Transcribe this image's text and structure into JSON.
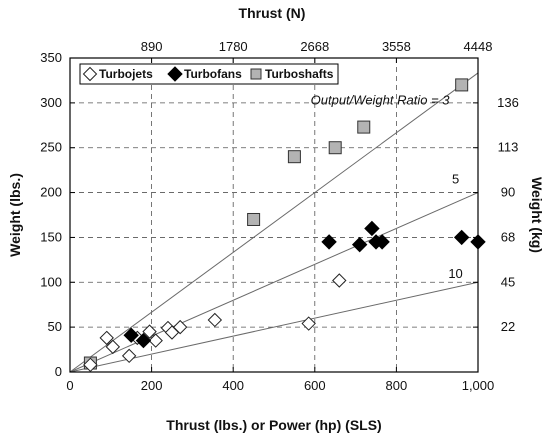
{
  "chart_data": {
    "type": "scatter",
    "title": "",
    "xlabel": "Thrust (lbs.) or Power (hp) (SLS)",
    "ylabel": "Weight (lbs.)",
    "x_top_label": "Thrust (N)",
    "y_right_label": "Weight (kg)",
    "xlim": [
      0,
      1000
    ],
    "ylim": [
      0,
      350
    ],
    "x_ticks": [
      "0",
      "200",
      "400",
      "600",
      "800",
      "1,000"
    ],
    "x_tick_values": [
      0,
      200,
      400,
      600,
      800,
      1000
    ],
    "y_ticks": [
      "0",
      "50",
      "100",
      "150",
      "200",
      "250",
      "300",
      "350"
    ],
    "y_tick_values": [
      0,
      50,
      100,
      150,
      200,
      250,
      300,
      350
    ],
    "top_ticks": [
      {
        "label": "890",
        "x": 200
      },
      {
        "label": "1780",
        "x": 400
      },
      {
        "label": "2668",
        "x": 600
      },
      {
        "label": "3558",
        "x": 800
      },
      {
        "label": "4448",
        "x": 1000
      }
    ],
    "right_ticks": [
      {
        "label": "22",
        "y": 50
      },
      {
        "label": "45",
        "y": 100
      },
      {
        "label": "68",
        "y": 150
      },
      {
        "label": "90",
        "y": 200
      },
      {
        "label": "113",
        "y": 250
      },
      {
        "label": "136",
        "y": 300
      }
    ],
    "grid": true,
    "legend_position": "top-left",
    "ratio_lines": [
      {
        "ratio": 3,
        "label": "Output/Weight Ratio = 3",
        "label_x": 760,
        "label_y": 298
      },
      {
        "ratio": 5,
        "label": "5",
        "label_x": 945,
        "label_y": 210
      },
      {
        "ratio": 10,
        "label": "10",
        "label_x": 945,
        "label_y": 105
      }
    ],
    "series": [
      {
        "name": "Turbojets",
        "marker": "open-diamond",
        "color": "#000000",
        "points": [
          {
            "x": 50,
            "y": 8
          },
          {
            "x": 90,
            "y": 38
          },
          {
            "x": 105,
            "y": 28
          },
          {
            "x": 145,
            "y": 18
          },
          {
            "x": 165,
            "y": 38
          },
          {
            "x": 195,
            "y": 45
          },
          {
            "x": 210,
            "y": 35
          },
          {
            "x": 240,
            "y": 49
          },
          {
            "x": 250,
            "y": 44
          },
          {
            "x": 270,
            "y": 50
          },
          {
            "x": 355,
            "y": 58
          },
          {
            "x": 585,
            "y": 54
          },
          {
            "x": 660,
            "y": 102
          }
        ]
      },
      {
        "name": "Turbofans",
        "marker": "filled-diamond",
        "color": "#000000",
        "points": [
          {
            "x": 150,
            "y": 41
          },
          {
            "x": 180,
            "y": 35
          },
          {
            "x": 635,
            "y": 145
          },
          {
            "x": 710,
            "y": 142
          },
          {
            "x": 740,
            "y": 160
          },
          {
            "x": 750,
            "y": 145
          },
          {
            "x": 765,
            "y": 145
          },
          {
            "x": 960,
            "y": 150
          },
          {
            "x": 1000,
            "y": 145
          }
        ]
      },
      {
        "name": "Turboshafts",
        "marker": "gray-square",
        "color": "#b0b0b0",
        "points": [
          {
            "x": 50,
            "y": 10
          },
          {
            "x": 450,
            "y": 170
          },
          {
            "x": 550,
            "y": 240
          },
          {
            "x": 650,
            "y": 250
          },
          {
            "x": 720,
            "y": 273
          },
          {
            "x": 960,
            "y": 320
          }
        ]
      }
    ]
  }
}
